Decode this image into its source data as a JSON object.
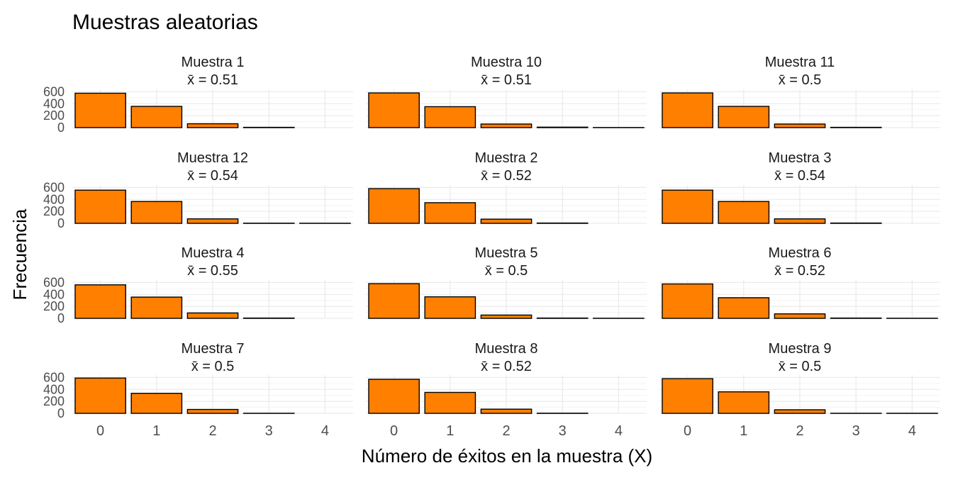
{
  "chart_data": {
    "type": "bar",
    "title": "Muestras aleatorias",
    "xlabel": "Número de éxitos en la muestra (X)",
    "ylabel": "Frecuencia",
    "categories": [
      "0",
      "1",
      "2",
      "3",
      "4"
    ],
    "ylim": [
      0,
      640
    ],
    "yticks": [
      0,
      200,
      400,
      600
    ],
    "ytick_labels": [
      "0",
      "200",
      "400",
      "600"
    ],
    "bar_color": "#FF7F00",
    "bar_outline_color": "#000000",
    "grid": true,
    "panels": [
      {
        "label": "Muestra 1",
        "mean_label": "x̄ = 0.51",
        "values": [
          575,
          355,
          65,
          5,
          0
        ]
      },
      {
        "label": "Muestra 10",
        "mean_label": "x̄ = 0.51",
        "values": [
          580,
          350,
          60,
          8,
          2
        ]
      },
      {
        "label": "Muestra 11",
        "mean_label": "x̄ = 0.5",
        "values": [
          580,
          355,
          60,
          5,
          0
        ]
      },
      {
        "label": "Muestra 12",
        "mean_label": "x̄ = 0.54",
        "values": [
          555,
          365,
          75,
          3,
          2
        ]
      },
      {
        "label": "Muestra 2",
        "mean_label": "x̄ = 0.52",
        "values": [
          580,
          345,
          70,
          5,
          0
        ]
      },
      {
        "label": "Muestra 3",
        "mean_label": "x̄ = 0.54",
        "values": [
          555,
          365,
          75,
          5,
          0
        ]
      },
      {
        "label": "Muestra 4",
        "mean_label": "x̄ = 0.55",
        "values": [
          560,
          355,
          90,
          5,
          0
        ]
      },
      {
        "label": "Muestra 5",
        "mean_label": "x̄ = 0.5",
        "values": [
          580,
          360,
          55,
          5,
          2
        ]
      },
      {
        "label": "Muestra 6",
        "mean_label": "x̄ = 0.52",
        "values": [
          575,
          345,
          75,
          5,
          2
        ]
      },
      {
        "label": "Muestra 7",
        "mean_label": "x̄ = 0.5",
        "values": [
          590,
          335,
          65,
          2,
          0
        ]
      },
      {
        "label": "Muestra 8",
        "mean_label": "x̄ = 0.52",
        "values": [
          570,
          350,
          70,
          3,
          0
        ]
      },
      {
        "label": "Muestra 9",
        "mean_label": "x̄ = 0.5",
        "values": [
          580,
          360,
          60,
          2,
          2
        ]
      }
    ]
  }
}
